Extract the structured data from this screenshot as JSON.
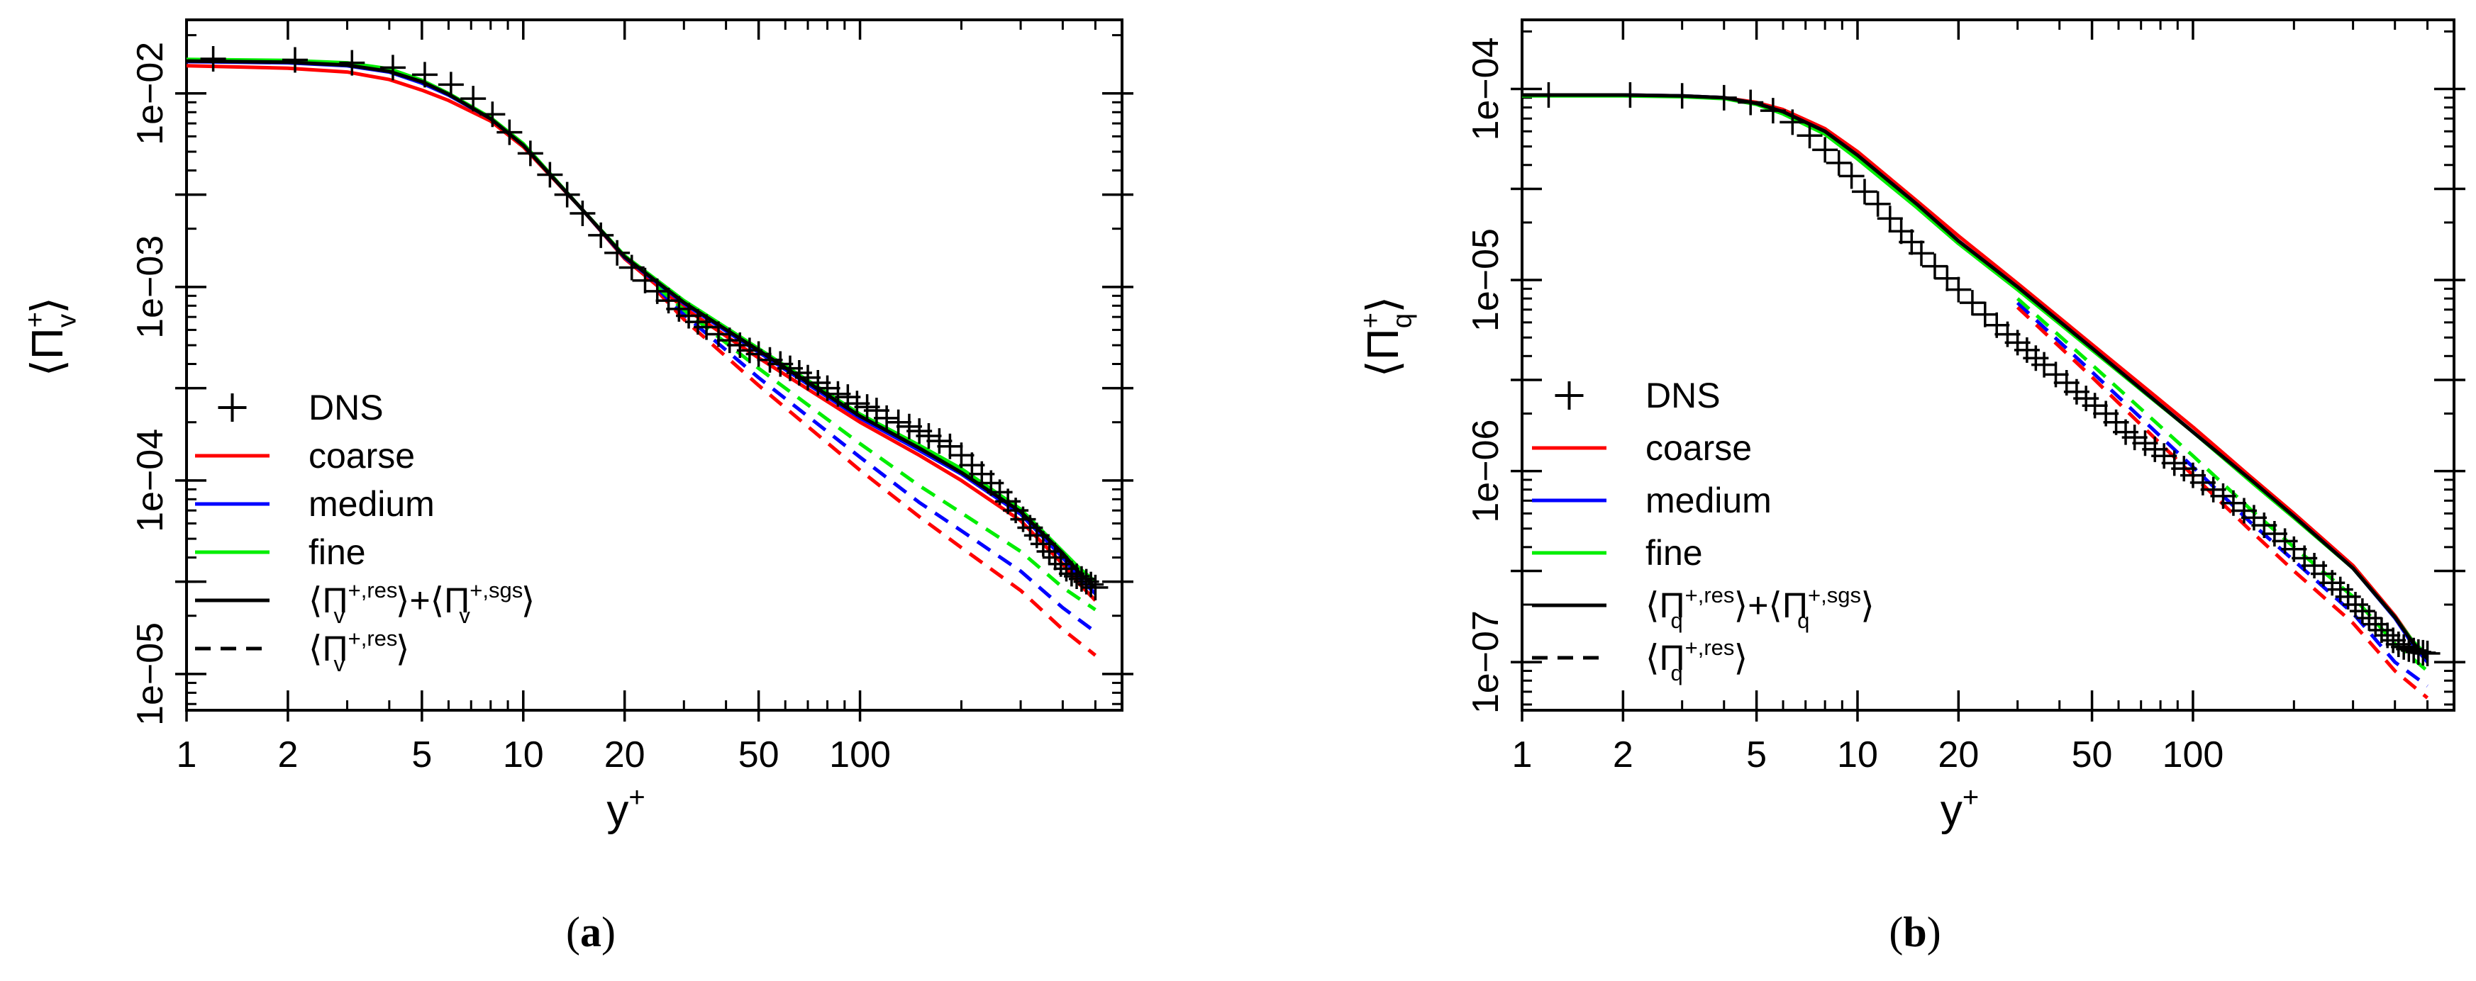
{
  "chart_data": [
    {
      "type": "line",
      "panel_label": "(a)",
      "xlabel": "y+",
      "ylabel": "⟨Πv+⟩",
      "xscale": "log",
      "yscale": "log",
      "xlim": [
        1,
        600
      ],
      "ylim": [
        6.5e-06,
        0.024
      ],
      "xticks": [
        1,
        2,
        5,
        10,
        20,
        50,
        100
      ],
      "xtick_labels": [
        "1",
        "2",
        "5",
        "10",
        "20",
        "50",
        "100"
      ],
      "yticks": [
        1e-05,
        3e-05,
        0.0001,
        0.0003,
        0.001,
        0.003,
        0.01
      ],
      "ytick_labels": [
        "1e−05",
        "",
        "1e−04",
        "",
        "1e−03",
        "",
        "1e−02"
      ],
      "legend": {
        "placement": "bottom-left",
        "entries": [
          {
            "label": "DNS",
            "style": "plus"
          },
          {
            "label": "coarse",
            "style": "line",
            "color": "#ff0000"
          },
          {
            "label": "medium",
            "style": "line",
            "color": "#0000ff"
          },
          {
            "label": "fine",
            "style": "line",
            "color": "#00ee00"
          },
          {
            "label": "⟨Πv+,res⟩+⟨Πv+,sgs⟩",
            "style": "line",
            "color": "#000000"
          },
          {
            "label": "⟨Πv+,res⟩",
            "style": "dashed",
            "color": "#000000"
          }
        ]
      },
      "dns": {
        "x": [
          1.2,
          2.1,
          3.1,
          4.1,
          5.1,
          6.1,
          7.1,
          8.1,
          9.1,
          10.5,
          12,
          13.5,
          15,
          17,
          19,
          21,
          23,
          25,
          27,
          29,
          31,
          33,
          35,
          38,
          41,
          44,
          47,
          50,
          54,
          58,
          62,
          66,
          70,
          75,
          80,
          86,
          92,
          98,
          105,
          112,
          120,
          130,
          140,
          150,
          160,
          172,
          185,
          200,
          215,
          230,
          245,
          260,
          275,
          290,
          305,
          320,
          335,
          350,
          365,
          380,
          395,
          410,
          425,
          440,
          455,
          470,
          485,
          500
        ],
        "y": [
          0.0151,
          0.0149,
          0.0144,
          0.0136,
          0.0125,
          0.0111,
          0.0094,
          0.0078,
          0.0063,
          0.0049,
          0.0038,
          0.003,
          0.0024,
          0.00185,
          0.0015,
          0.00126,
          0.00108,
          0.00095,
          0.00085,
          0.00077,
          0.00071,
          0.00066,
          0.00062,
          0.00057,
          0.00053,
          0.0005,
          0.00047,
          0.00045,
          0.00042,
          0.0004,
          0.00038,
          0.00036,
          0.00034,
          0.00032,
          0.0003,
          0.00028,
          0.00027,
          0.00025,
          0.00024,
          0.00023,
          0.00021,
          0.0002,
          0.00019,
          0.00018,
          0.00017,
          0.00016,
          0.00015,
          0.000135,
          0.00012,
          0.000108,
          9.7e-05,
          8.7e-05,
          7.8e-05,
          7e-05,
          6.3e-05,
          5.7e-05,
          5.2e-05,
          4.7e-05,
          4.3e-05,
          4e-05,
          3.7e-05,
          3.5e-05,
          3.3e-05,
          3.2e-05,
          3.1e-05,
          3e-05,
          2.9e-05,
          2.8e-05
        ]
      },
      "series": [
        {
          "name": "coarse",
          "color": "#ff0000",
          "dash": false,
          "x": [
            1,
            2,
            3,
            4,
            5,
            6,
            8,
            10,
            15,
            20,
            30,
            50,
            100,
            150,
            200,
            300,
            400,
            450,
            500
          ],
          "y": [
            0.0139,
            0.0135,
            0.0129,
            0.0118,
            0.0104,
            0.0092,
            0.0072,
            0.0053,
            0.0025,
            0.0014,
            0.00078,
            0.00043,
            0.0002,
            0.000135,
            0.0001,
            6.2e-05,
            3.7e-05,
            2.9e-05,
            2.4e-05
          ]
        },
        {
          "name": "medium",
          "color": "#0000ff",
          "dash": false,
          "x": [
            1,
            2,
            3,
            4,
            5,
            6,
            8,
            10,
            15,
            20,
            30,
            50,
            100,
            150,
            200,
            300,
            400,
            450,
            500
          ],
          "y": [
            0.0146,
            0.0144,
            0.0139,
            0.0129,
            0.0113,
            0.0098,
            0.0074,
            0.0054,
            0.0025,
            0.00142,
            0.00082,
            0.00046,
            0.00021,
            0.000143,
            0.000108,
            6.7e-05,
            4e-05,
            3.1e-05,
            2.6e-05
          ]
        },
        {
          "name": "fine",
          "color": "#00ee00",
          "dash": false,
          "x": [
            1,
            2,
            3,
            4,
            5,
            6,
            8,
            10,
            15,
            20,
            30,
            50,
            100,
            150,
            200,
            300,
            400,
            450,
            500
          ],
          "y": [
            0.015,
            0.0148,
            0.0144,
            0.0134,
            0.0117,
            0.01,
            0.0075,
            0.0055,
            0.0025,
            0.00145,
            0.00085,
            0.00048,
            0.00022,
            0.000152,
            0.000115,
            7.1e-05,
            4.3e-05,
            3.5e-05,
            3e-05
          ]
        },
        {
          "name": "sum",
          "color": "#000000",
          "dash": false,
          "x": [
            1,
            2,
            3,
            4,
            5,
            6,
            8,
            10,
            15,
            20,
            30,
            50,
            100,
            150,
            200,
            300,
            400,
            450,
            500
          ],
          "y": [
            0.0147,
            0.0145,
            0.014,
            0.013,
            0.0115,
            0.0099,
            0.0074,
            0.0054,
            0.0025,
            0.00143,
            0.00083,
            0.00047,
            0.000215,
            0.000147,
            0.00011,
            6.9e-05,
            4.2e-05,
            3.3e-05,
            2.8e-05
          ]
        },
        {
          "name": "coarse-res",
          "color": "#ff0000",
          "dash": true,
          "x": [
            25,
            30,
            50,
            100,
            150,
            200,
            300,
            400,
            500
          ],
          "y": [
            0.00095,
            0.00068,
            0.00031,
            0.000113,
            6.5e-05,
            4.5e-05,
            2.7e-05,
            1.7e-05,
            1.25e-05
          ]
        },
        {
          "name": "medium-res",
          "color": "#0000ff",
          "dash": true,
          "x": [
            25,
            30,
            50,
            100,
            150,
            200,
            300,
            400,
            500
          ],
          "y": [
            0.00098,
            0.00072,
            0.00034,
            0.000132,
            7.7e-05,
            5.5e-05,
            3.4e-05,
            2.2e-05,
            1.65e-05
          ]
        },
        {
          "name": "fine-res",
          "color": "#00ee00",
          "dash": true,
          "x": [
            25,
            30,
            50,
            100,
            150,
            200,
            300,
            400,
            500
          ],
          "y": [
            0.001,
            0.00076,
            0.00038,
            0.000155,
            9.4e-05,
            6.8e-05,
            4.3e-05,
            2.8e-05,
            2.15e-05
          ]
        }
      ]
    },
    {
      "type": "line",
      "panel_label": "(b)",
      "xlabel": "y+",
      "ylabel": "⟨Πq+⟩",
      "xscale": "log",
      "yscale": "log",
      "xlim": [
        1,
        600
      ],
      "ylim": [
        5.6e-08,
        0.00023
      ],
      "xticks": [
        1,
        2,
        5,
        10,
        20,
        50,
        100
      ],
      "xtick_labels": [
        "1",
        "2",
        "5",
        "10",
        "20",
        "50",
        "100"
      ],
      "yticks": [
        1e-07,
        3e-07,
        1e-06,
        3e-06,
        1e-05,
        3e-05,
        0.0001
      ],
      "ytick_labels": [
        "1e−07",
        "",
        "1e−06",
        "",
        "1e−05",
        "",
        "1e−04"
      ],
      "legend": {
        "placement": "bottom-left",
        "entries": [
          {
            "label": "DNS",
            "style": "plus"
          },
          {
            "label": "coarse",
            "style": "line",
            "color": "#ff0000"
          },
          {
            "label": "medium",
            "style": "line",
            "color": "#0000ff"
          },
          {
            "label": "fine",
            "style": "line",
            "color": "#00ee00"
          },
          {
            "label": "⟨Πq+,res⟩+⟨Πq+,sgs⟩",
            "style": "line",
            "color": "#000000"
          },
          {
            "label": "⟨Πq+,res⟩",
            "style": "dashed",
            "color": "#000000"
          }
        ]
      },
      "dns": {
        "x": [
          1.2,
          2.1,
          3.0,
          4.0,
          4.8,
          5.6,
          6.4,
          7.2,
          8.0,
          8.8,
          9.6,
          10.5,
          11.5,
          12.5,
          13.5,
          14.5,
          15.5,
          17,
          18.5,
          20,
          22,
          24,
          26,
          28,
          30,
          32,
          34,
          36,
          39,
          42,
          45,
          48,
          51,
          55,
          59,
          63,
          67,
          72,
          77,
          82,
          88,
          94,
          100,
          107,
          115,
          123,
          132,
          142,
          152,
          163,
          175,
          188,
          200,
          215,
          230,
          245,
          260,
          275,
          290,
          305,
          320,
          335,
          350,
          365,
          380,
          395,
          410,
          425,
          440,
          455,
          470,
          485,
          500
        ],
        "y": [
          9.3e-05,
          9.3e-05,
          9.2e-05,
          9e-05,
          8.5e-05,
          7.7e-05,
          6.7e-05,
          5.7e-05,
          4.8e-05,
          4.1e-05,
          3.5e-05,
          2.9e-05,
          2.5e-05,
          2.1e-05,
          1.8e-05,
          1.58e-05,
          1.38e-05,
          1.18e-05,
          1.02e-05,
          8.9e-06,
          7.6e-06,
          6.6e-06,
          5.8e-06,
          5.2e-06,
          4.7e-06,
          4.3e-06,
          3.9e-06,
          3.6e-06,
          3.2e-06,
          2.9e-06,
          2.6e-06,
          2.4e-06,
          2.2e-06,
          2e-06,
          1.8e-06,
          1.6e-06,
          1.5e-06,
          1.4e-06,
          1.3e-06,
          1.2e-06,
          1.1e-06,
          1.03e-06,
          9.5e-07,
          8.7e-07,
          8e-07,
          7.4e-07,
          6.8e-07,
          6.2e-07,
          5.7e-07,
          5.2e-07,
          4.7e-07,
          4.3e-07,
          3.9e-07,
          3.5e-07,
          3.2e-07,
          2.9e-07,
          2.6e-07,
          2.4e-07,
          2.2e-07,
          2e-07,
          1.85e-07,
          1.7e-07,
          1.58e-07,
          1.47e-07,
          1.38e-07,
          1.3e-07,
          1.24e-07,
          1.2e-07,
          1.17e-07,
          1.15e-07,
          1.13e-07,
          1.12e-07,
          1.11e-07
        ]
      },
      "series": [
        {
          "name": "coarse",
          "color": "#ff0000",
          "dash": false,
          "x": [
            1,
            2,
            3,
            4,
            5,
            6,
            8,
            10,
            15,
            20,
            30,
            50,
            100,
            150,
            200,
            300,
            400,
            450,
            500
          ],
          "y": [
            9.3e-05,
            9.3e-05,
            9.2e-05,
            9e-05,
            8.5e-05,
            7.8e-05,
            6.2e-05,
            4.7e-05,
            2.6e-05,
            1.7e-05,
            9.6e-06,
            4.6e-06,
            1.7e-06,
            9.2e-07,
            6e-07,
            3.2e-07,
            1.75e-07,
            1.3e-07,
            1.05e-07
          ]
        },
        {
          "name": "medium",
          "color": "#0000ff",
          "dash": false,
          "x": [
            1,
            2,
            3,
            4,
            5,
            6,
            8,
            10,
            15,
            20,
            30,
            50,
            100,
            150,
            200,
            300,
            400,
            450,
            500
          ],
          "y": [
            9.3e-05,
            9.3e-05,
            9.2e-05,
            9e-05,
            8.4e-05,
            7.6e-05,
            6e-05,
            4.5e-05,
            2.5e-05,
            1.6e-05,
            9.2e-06,
            4.4e-06,
            1.6e-06,
            8.8e-07,
            5.8e-07,
            3.1e-07,
            1.7e-07,
            1.25e-07,
            1e-07
          ]
        },
        {
          "name": "fine",
          "color": "#00ee00",
          "dash": false,
          "x": [
            1,
            2,
            3,
            4,
            5,
            6,
            8,
            10,
            15,
            20,
            30,
            50,
            100,
            150,
            200,
            300,
            400,
            450,
            500
          ],
          "y": [
            9.2e-05,
            9.2e-05,
            9.1e-05,
            8.9e-05,
            8.3e-05,
            7.4e-05,
            5.8e-05,
            4.3e-05,
            2.4e-05,
            1.55e-05,
            8.9e-06,
            4.3e-06,
            1.6e-06,
            8.7e-07,
            5.7e-07,
            3.1e-07,
            1.72e-07,
            1.3e-07,
            1.08e-07
          ]
        },
        {
          "name": "sum",
          "color": "#000000",
          "dash": false,
          "x": [
            1,
            2,
            3,
            4,
            5,
            6,
            8,
            10,
            15,
            20,
            30,
            50,
            100,
            150,
            200,
            300,
            400,
            450,
            500
          ],
          "y": [
            9.3e-05,
            9.3e-05,
            9.2e-05,
            9e-05,
            8.4e-05,
            7.6e-05,
            6e-05,
            4.5e-05,
            2.5e-05,
            1.6e-05,
            9.2e-06,
            4.4e-06,
            1.6e-06,
            8.9e-07,
            5.8e-07,
            3.1e-07,
            1.72e-07,
            1.28e-07,
            1.04e-07
          ]
        },
        {
          "name": "coarse-res",
          "color": "#ff0000",
          "dash": true,
          "x": [
            30,
            50,
            100,
            150,
            200,
            300,
            400,
            500
          ],
          "y": [
            7.2e-06,
            3.1e-06,
            9.5e-07,
            4.8e-07,
            3e-07,
            1.6e-07,
            9e-08,
            6.5e-08
          ]
        },
        {
          "name": "medium-res",
          "color": "#0000ff",
          "dash": true,
          "x": [
            30,
            50,
            100,
            150,
            200,
            300,
            400,
            500
          ],
          "y": [
            7.6e-06,
            3.3e-06,
            1.05e-06,
            5.3e-07,
            3.4e-07,
            1.8e-07,
            1e-07,
            7.5e-08
          ]
        },
        {
          "name": "fine-res",
          "color": "#00ee00",
          "dash": true,
          "x": [
            30,
            50,
            100,
            150,
            200,
            300,
            400,
            500
          ],
          "y": [
            8e-06,
            3.6e-06,
            1.2e-06,
            6.2e-07,
            4e-07,
            2.2e-07,
            1.25e-07,
            9e-08
          ]
        }
      ]
    }
  ]
}
